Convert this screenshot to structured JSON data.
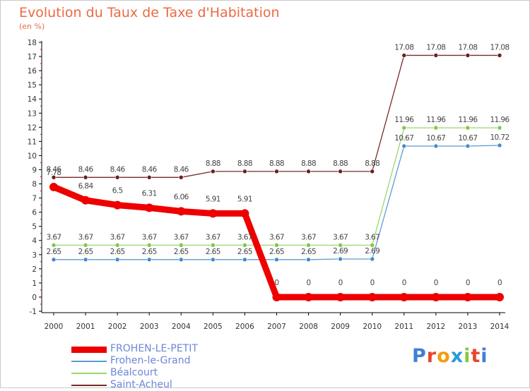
{
  "title": "Evolution du Taux de Taxe d'Habitation",
  "subtitle": "(en %)",
  "logo": {
    "text": "Proxiti"
  },
  "chart_data": {
    "type": "line",
    "x": [
      "2000",
      "2001",
      "2002",
      "2003",
      "2004",
      "2005",
      "2006",
      "2007",
      "2008",
      "2009",
      "2010",
      "2011",
      "2012",
      "2013",
      "2014"
    ],
    "ylim": [
      -1,
      18
    ],
    "yticks": [
      -1,
      0,
      1,
      2,
      3,
      4,
      5,
      6,
      7,
      8,
      9,
      10,
      11,
      12,
      13,
      14,
      15,
      16,
      17,
      18
    ],
    "grid": false,
    "legend": "bottom-left",
    "series": [
      {
        "name": "Saint-Acheul",
        "color": "#7b2a2a",
        "marker": "#6b1f1f",
        "width": 1.3,
        "r": 3,
        "values": [
          8.46,
          8.46,
          8.46,
          8.46,
          8.46,
          8.88,
          8.88,
          8.88,
          8.88,
          8.88,
          8.88,
          17.08,
          17.08,
          17.08,
          17.08
        ],
        "labels": [
          "8.46",
          "8.46",
          "8.46",
          "8.46",
          "8.46",
          "8.88",
          "8.88",
          "8.88",
          "8.88",
          "8.88",
          "8.88",
          "17.08",
          "17.08",
          "17.08",
          "17.08"
        ]
      },
      {
        "name": "Béalcourt",
        "color": "#9bd86a",
        "marker": "#7cc84a",
        "width": 1.3,
        "r": 3,
        "values": [
          3.67,
          3.67,
          3.67,
          3.67,
          3.67,
          3.67,
          3.67,
          3.67,
          3.67,
          3.67,
          3.67,
          11.96,
          11.96,
          11.96,
          11.96
        ],
        "labels": [
          "3.67",
          "3.67",
          "3.67",
          "3.67",
          "3.67",
          "3.67",
          "3.67",
          "3.67",
          "3.67",
          "3.67",
          "3.67",
          "11.96",
          "11.96",
          "11.96",
          "11.96"
        ]
      },
      {
        "name": "Frohen-le-Grand",
        "color": "#5b9bd5",
        "marker": "#4a8ac4",
        "width": 1.3,
        "r": 3,
        "values": [
          2.65,
          2.65,
          2.65,
          2.65,
          2.65,
          2.65,
          2.65,
          2.65,
          2.65,
          2.69,
          2.69,
          10.67,
          10.67,
          10.67,
          10.72
        ],
        "labels": [
          "2.65",
          "2.65",
          "2.65",
          "2.65",
          "2.65",
          "2.65",
          "2.65",
          "2.65",
          "2.65",
          "2.69",
          "2.69",
          "10.67",
          "10.67",
          "10.67",
          "10.72"
        ]
      },
      {
        "name": "FROHEN-LE-PETIT",
        "color": "#ee0000",
        "marker": "#ee0000",
        "width": 9,
        "r": 6,
        "values": [
          7.78,
          6.84,
          6.5,
          6.31,
          6.06,
          5.91,
          5.91,
          0,
          0,
          0,
          0,
          0,
          0,
          0,
          0
        ],
        "labels": [
          "7.78",
          "6.84",
          "6.5",
          "6.31",
          "6.06",
          "5.91",
          "5.91",
          "0",
          "0",
          "0",
          "0",
          "0",
          "0",
          "0",
          "0"
        ]
      }
    ],
    "legend_order": [
      3,
      2,
      1,
      0
    ]
  }
}
